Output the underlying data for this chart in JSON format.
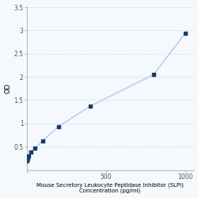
{
  "x_values": [
    1.563,
    3.125,
    6.25,
    12.5,
    25,
    50,
    100,
    200,
    400,
    800,
    1000
  ],
  "y_values": [
    0.201,
    0.22,
    0.252,
    0.29,
    0.38,
    0.46,
    0.62,
    0.93,
    1.37,
    2.05,
    2.94
  ],
  "line_color": "#a8c8e8",
  "marker_color": "#1a3a6a",
  "xlabel_line1": "Mouse Secretory Leukocyte Peptidase Inhibitor (SLPI)",
  "xlabel_line2": "Concentration (pg/ml)",
  "ylabel": "OD",
  "xtick_mid_label": "500",
  "xlim": [
    0,
    1050
  ],
  "ylim": [
    0,
    3.5
  ],
  "yticks": [
    0.5,
    1.0,
    1.5,
    2.0,
    2.5,
    3.0,
    3.5
  ],
  "xtick_positions": [
    0,
    500,
    1000
  ],
  "xtick_labels": [
    "",
    "500",
    "1000"
  ],
  "grid_color": "#ccddee",
  "bg_color": "#f5f8fc",
  "xlabel_fontsize": 5,
  "ylabel_fontsize": 6,
  "tick_fontsize": 5.5
}
